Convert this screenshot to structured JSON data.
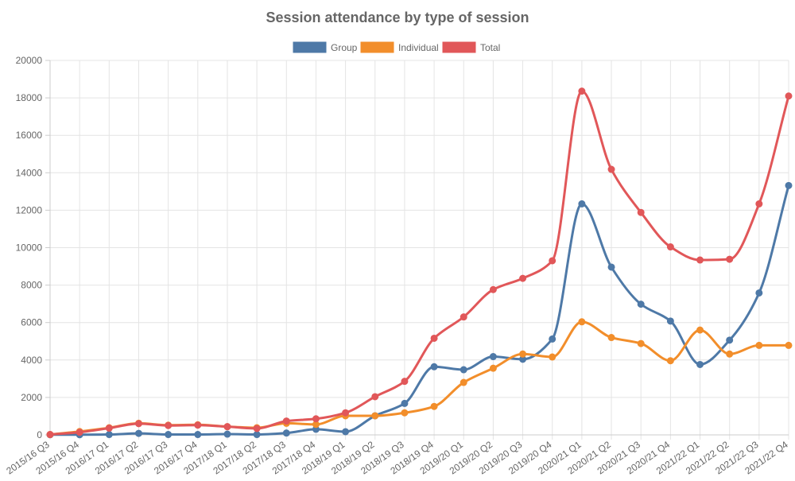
{
  "chart_data": {
    "type": "line",
    "title": "Session attendance by type of session",
    "xlabel": "",
    "ylabel": "",
    "ylim": [
      0,
      20000
    ],
    "yticks": [
      0,
      2000,
      4000,
      6000,
      8000,
      10000,
      12000,
      14000,
      16000,
      18000,
      20000
    ],
    "grid": true,
    "legend_position": "top",
    "categories": [
      "2015/16 Q3",
      "2015/16 Q4",
      "2016/17 Q1",
      "2016/17 Q2",
      "2016/17 Q3",
      "2016/17 Q4",
      "2017/18 Q1",
      "2017/18 Q2",
      "2017/18 Q3",
      "2017/18 Q4",
      "2018/19 Q1",
      "2018/19 Q2",
      "2018/19 Q3",
      "2018/19 Q4",
      "2019/20 Q1",
      "2019/20 Q2",
      "2019/20 Q3",
      "2019/20 Q4",
      "2020/21 Q1",
      "2020/21 Q2",
      "2020/21 Q3",
      "2020/21 Q4",
      "2021/22 Q1",
      "2021/22 Q2",
      "2021/22 Q3",
      "2021/22 Q4"
    ],
    "series": [
      {
        "name": "Group",
        "color": "#4e79a7",
        "values": [
          10,
          10,
          20,
          80,
          20,
          20,
          40,
          20,
          100,
          300,
          170,
          1020,
          1680,
          3640,
          3480,
          4180,
          4040,
          5120,
          12340,
          8960,
          6980,
          6080,
          3760,
          5060,
          7580,
          13320
        ]
      },
      {
        "name": "Individual",
        "color": "#f28e2b",
        "values": [
          20,
          180,
          380,
          620,
          520,
          540,
          440,
          380,
          620,
          560,
          1020,
          1020,
          1180,
          1520,
          2800,
          3560,
          4320,
          4160,
          6040,
          5200,
          4880,
          3960,
          5600,
          4320,
          4780,
          4780
        ]
      },
      {
        "name": "Total",
        "color": "#e15759",
        "values": [
          20,
          140,
          360,
          600,
          500,
          520,
          440,
          340,
          740,
          860,
          1180,
          2040,
          2860,
          5160,
          6300,
          7760,
          8360,
          9300,
          18360,
          14180,
          11880,
          10040,
          9340,
          9380,
          12340,
          18100
        ]
      }
    ]
  }
}
